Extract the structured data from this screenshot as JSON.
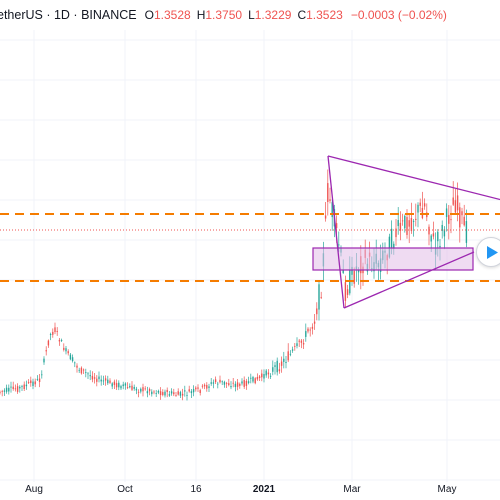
{
  "header": {
    "symbol": "etherUS",
    "interval": "1D",
    "exchange": "BINANCE",
    "ohlc": [
      {
        "label": "O",
        "value": "1.3528"
      },
      {
        "label": "H",
        "value": "1.3750"
      },
      {
        "label": "L",
        "value": "1.3229"
      },
      {
        "label": "C",
        "value": "1.3523"
      }
    ],
    "change": "−0.0003 (−0.02%)"
  },
  "x_axis": [
    "Aug",
    "Oct",
    "16",
    "2021",
    "Mar",
    "May"
  ],
  "colors": {
    "up": "#26a69a",
    "down": "#ef5350",
    "support_resistance": "#f57c00",
    "triangle": "#9c27b0",
    "zone_fill": "#e1bee7",
    "accent": "#2196f3"
  },
  "icons": {
    "play": "play-icon"
  }
}
